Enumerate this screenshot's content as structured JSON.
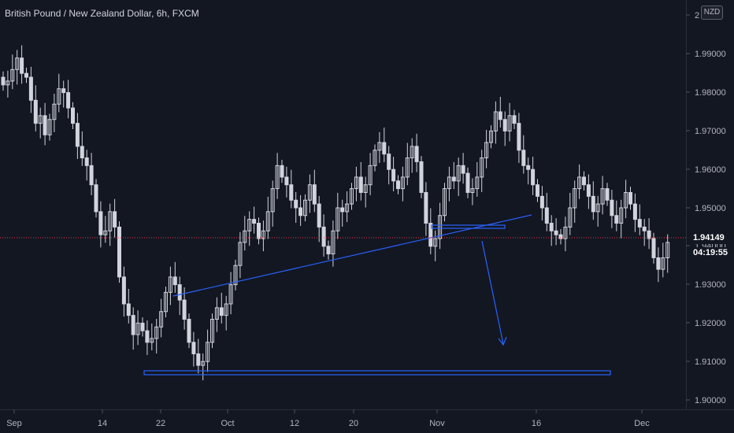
{
  "header": {
    "title": "British Pound / New Zealand Dollar, 6h, FXCM",
    "currency": "NZD"
  },
  "price_axis": {
    "ticks": [
      "1.90000",
      "1.91000",
      "1.92000",
      "1.93000",
      "1.94000",
      "1.95000",
      "1.96000",
      "1.97000",
      "1.98000",
      "1.99000",
      "2"
    ],
    "current_price": "1.94149",
    "countdown": "04:19:55"
  },
  "time_axis": {
    "labels": [
      "Sep",
      "14",
      "22",
      "Oct",
      "12",
      "20",
      "Nov",
      "16",
      "Dec"
    ]
  },
  "colors": {
    "background": "#131722",
    "candle": "#d1d4dc",
    "drawing": "#2962ff",
    "price_line": "#f23645",
    "axis_text": "#b2b5be"
  },
  "chart_data": {
    "type": "candlestick",
    "symbol": "GBPNZD",
    "ylim": [
      1.898,
      2.0
    ],
    "close_series": [
      1.982,
      1.983,
      1.986,
      1.989,
      1.985,
      1.984,
      1.978,
      1.972,
      1.974,
      1.969,
      1.973,
      1.977,
      1.981,
      1.98,
      1.976,
      1.972,
      1.966,
      1.963,
      1.961,
      1.956,
      1.949,
      1.943,
      1.944,
      1.949,
      1.945,
      1.932,
      1.925,
      1.922,
      1.917,
      1.92,
      1.918,
      1.915,
      1.916,
      1.919,
      1.923,
      1.928,
      1.932,
      1.93,
      1.926,
      1.921,
      1.915,
      1.912,
      1.909,
      1.91,
      1.915,
      1.921,
      1.924,
      1.922,
      1.925,
      1.93,
      1.935,
      1.941,
      1.944,
      1.947,
      1.946,
      1.942,
      1.944,
      1.949,
      1.955,
      1.961,
      1.958,
      1.956,
      1.952,
      1.95,
      1.948,
      1.952,
      1.956,
      1.951,
      1.945,
      1.94,
      1.938,
      1.944,
      1.95,
      1.949,
      1.951,
      1.955,
      1.958,
      1.954,
      1.956,
      1.961,
      1.965,
      1.967,
      1.964,
      1.96,
      1.957,
      1.955,
      1.958,
      1.963,
      1.966,
      1.962,
      1.954,
      1.946,
      1.94,
      1.942,
      1.948,
      1.955,
      1.958,
      1.957,
      1.961,
      1.959,
      1.954,
      1.955,
      1.958,
      1.963,
      1.967,
      1.97,
      1.975,
      1.973,
      1.97,
      1.974,
      1.972,
      1.965,
      1.961,
      1.96,
      1.956,
      1.953,
      1.95,
      1.946,
      1.944,
      1.943,
      1.942,
      1.945,
      1.95,
      1.955,
      1.958,
      1.956,
      1.953,
      1.949,
      1.951,
      1.955,
      1.952,
      1.948,
      1.946,
      1.95,
      1.954,
      1.951,
      1.947,
      1.945,
      1.944,
      1.942,
      1.937,
      1.934,
      1.937,
      1.941
    ],
    "annotations": [
      {
        "type": "trendline",
        "from": [
          1.9255,
          21.5
        ],
        "to": [
          1.9475,
          72
        ]
      },
      {
        "type": "rectangle",
        "top": 1.9068,
        "bottom": 1.9058,
        "x0": 18.5,
        "x1": 81
      },
      {
        "type": "rectangle",
        "top": 1.9447,
        "bottom": 1.9438,
        "x0": 57.8,
        "x1": 67
      },
      {
        "type": "arrow",
        "from": [
          1.9415,
          63.5
        ],
        "to": [
          1.9115,
          66.5
        ]
      }
    ]
  }
}
